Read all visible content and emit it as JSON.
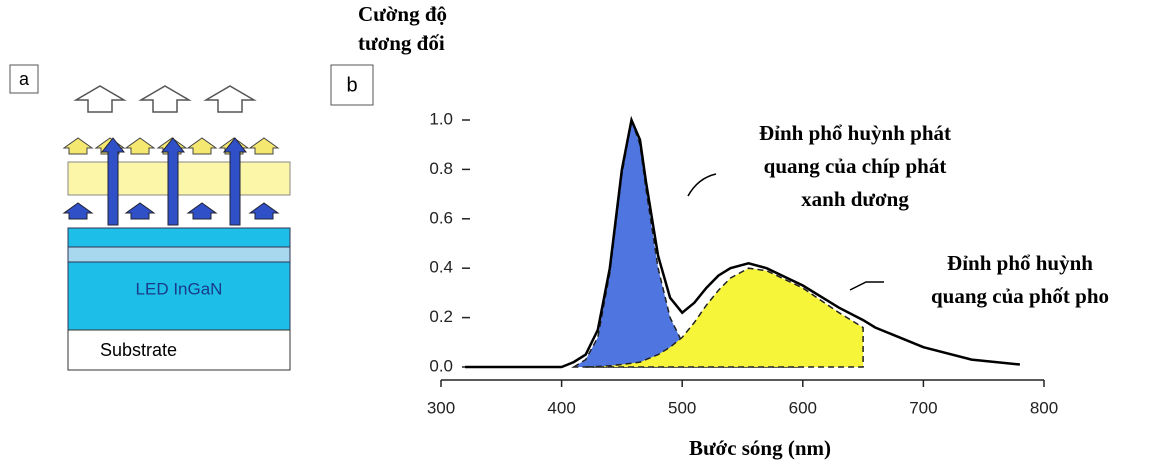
{
  "diagram": {
    "label": "a",
    "layers": [
      "LED InGaN",
      "Substrate"
    ]
  },
  "chart_data": {
    "type": "line",
    "label": "b",
    "ylabel": [
      "Cường độ",
      "tương đối"
    ],
    "xlabel": "Bước sóng (nm)",
    "annotations": [
      [
        "Đỉnh phổ huỳnh phát",
        "quang của chíp phát",
        "xanh dương"
      ],
      [
        "Đỉnh phổ huỳnh",
        "quang của phốt pho"
      ]
    ],
    "x": [
      320,
      400,
      410,
      420,
      430,
      440,
      450,
      458,
      465,
      470,
      480,
      490,
      500,
      510,
      520,
      530,
      540,
      555,
      570,
      600,
      630,
      650,
      660,
      700,
      740,
      780
    ],
    "series": [
      {
        "color": "#4f76e0",
        "fill": true,
        "dash": true,
        "values": [
          null,
          null,
          0,
          0.03,
          0.12,
          0.38,
          0.78,
          1.0,
          0.9,
          0.72,
          0.4,
          0.2,
          0.1,
          0.07,
          0.05,
          0.04,
          0.03,
          0.02,
          0.015,
          0.01,
          null,
          null,
          null,
          null,
          null,
          null
        ]
      },
      {
        "color": "#f7f53a",
        "fill": true,
        "dash": true,
        "values": [
          null,
          null,
          null,
          0,
          0.002,
          0.005,
          0.01,
          0.015,
          0.02,
          0.03,
          0.05,
          0.08,
          0.12,
          0.18,
          0.25,
          0.31,
          0.36,
          0.4,
          0.39,
          0.32,
          0.22,
          0.16,
          null,
          null,
          null,
          null
        ]
      },
      {
        "color": "#000000",
        "fill": false,
        "dash": false,
        "values": [
          0,
          0,
          0.02,
          0.05,
          0.15,
          0.4,
          0.8,
          1.0,
          0.92,
          0.75,
          0.45,
          0.28,
          0.22,
          0.26,
          0.32,
          0.37,
          0.4,
          0.42,
          0.4,
          0.33,
          0.24,
          0.19,
          0.16,
          0.08,
          0.03,
          0.01
        ]
      }
    ],
    "xlim": [
      300,
      800
    ],
    "xticks": [
      300,
      400,
      500,
      600,
      700,
      800
    ],
    "ylim": [
      0,
      1
    ],
    "yticks": [
      {
        "value": 0,
        "label": "0.0"
      },
      0.2,
      0.4,
      0.6,
      0.8,
      {
        "value": 1,
        "label": "1.0"
      }
    ],
    "grid": false
  }
}
